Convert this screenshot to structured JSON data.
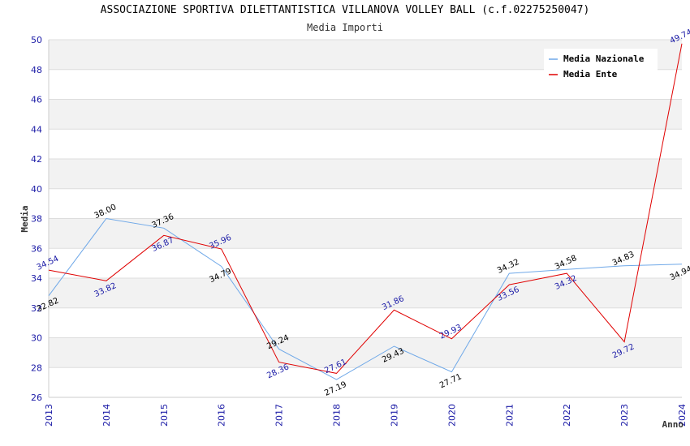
{
  "chart_data": {
    "type": "line",
    "title": "ASSOCIAZIONE SPORTIVA DILETTANTISTICA VILLANOVA VOLLEY BALL (c.f.02275250047)",
    "subtitle": "Media Importi",
    "xlabel": "Anno",
    "ylabel": "Media",
    "ylim": [
      26,
      50
    ],
    "yticks": [
      "26",
      "28",
      "30",
      "32",
      "34",
      "36",
      "38",
      "40",
      "42",
      "44",
      "46",
      "48",
      "50"
    ],
    "categories": [
      "2013",
      "2014",
      "2015",
      "2016",
      "2017",
      "2018",
      "2019",
      "2020",
      "2021",
      "2022",
      "2023",
      "2024"
    ],
    "grid": true,
    "legend_position": "top-right",
    "series": [
      {
        "name": "Media Nazionale",
        "color": "#6fa8e8",
        "values": [
          32.82,
          38.0,
          37.36,
          34.79,
          29.24,
          27.19,
          29.43,
          27.71,
          34.32,
          34.58,
          34.83,
          34.94
        ],
        "labels": [
          "32.82",
          "38.00",
          "37.36",
          "34.79",
          "29.24",
          "27.19",
          "29.43",
          "27.71",
          "34.32",
          "34.58",
          "34.83",
          "34.94"
        ]
      },
      {
        "name": "Media Ente",
        "color": "#e00000",
        "values": [
          34.54,
          33.82,
          36.87,
          35.96,
          28.36,
          27.61,
          31.86,
          29.93,
          33.56,
          34.32,
          29.72,
          49.74
        ],
        "labels": [
          "34.54",
          "33.82",
          "36.87",
          "35.96",
          "28.36",
          "27.61",
          "31.86",
          "29.93",
          "33.56",
          "34.32",
          "29.72",
          "49.74"
        ]
      }
    ]
  }
}
